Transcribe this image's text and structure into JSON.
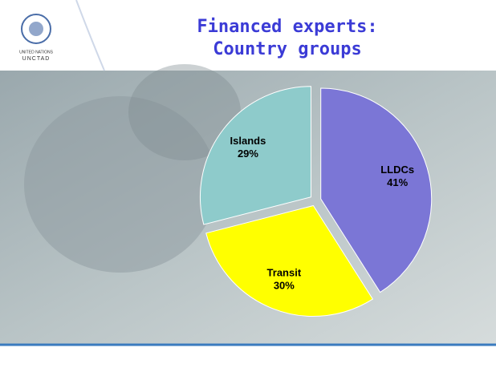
{
  "logo": {
    "line1": "UNITED NATIONS",
    "line2": "UNCTAD"
  },
  "chart_data": {
    "type": "pie",
    "title": [
      "Financed experts:",
      "Country groups"
    ],
    "categories": [
      "LLDCs",
      "Transit",
      "Islands"
    ],
    "values": [
      41,
      30,
      29
    ],
    "value_labels": [
      "41%",
      "30%",
      "29%"
    ],
    "colors": [
      "#7b76d6",
      "#ffff00",
      "#8ecbcb"
    ]
  }
}
